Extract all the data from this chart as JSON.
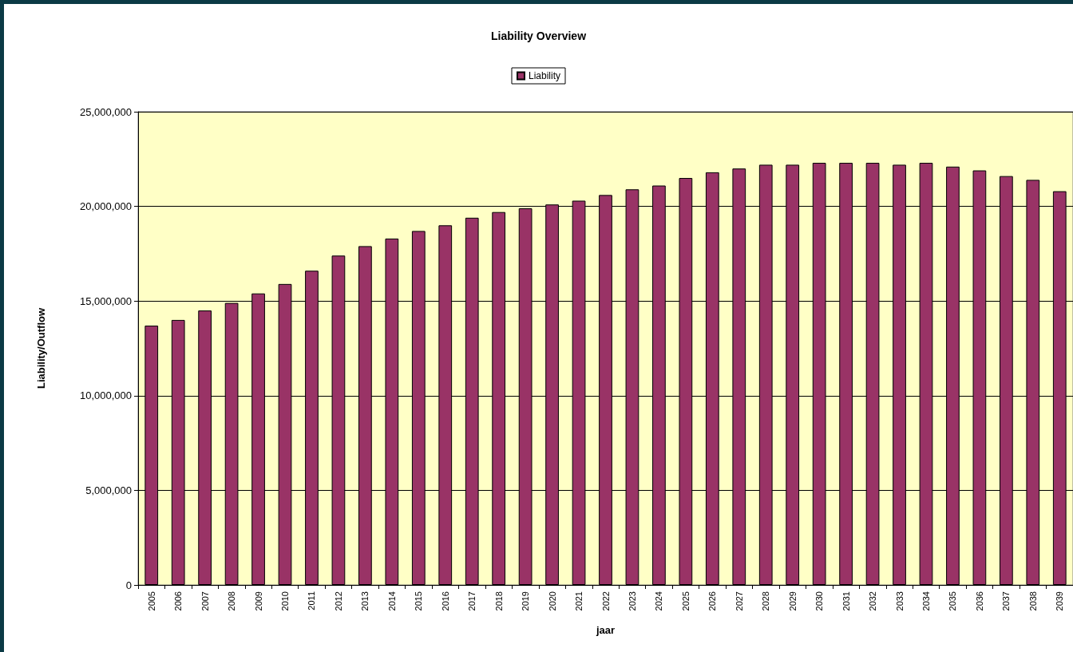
{
  "chart_data": {
    "type": "bar",
    "title": "Liability Overview",
    "xlabel": "jaar",
    "ylabel": "Liability/Outflow",
    "categories": [
      "2005",
      "2006",
      "2007",
      "2008",
      "2009",
      "2010",
      "2011",
      "2012",
      "2013",
      "2014",
      "2015",
      "2016",
      "2017",
      "2018",
      "2019",
      "2020",
      "2021",
      "2022",
      "2023",
      "2024",
      "2025",
      "2026",
      "2027",
      "2028",
      "2029",
      "2030",
      "2031",
      "2032",
      "2033",
      "2034",
      "2035",
      "2036",
      "2037",
      "2038",
      "2039"
    ],
    "series": [
      {
        "name": "Liability",
        "color": "#993366",
        "values": [
          13700000,
          14000000,
          14500000,
          14900000,
          15400000,
          15900000,
          16600000,
          17400000,
          17900000,
          18300000,
          18700000,
          19000000,
          19400000,
          19700000,
          19900000,
          20100000,
          20300000,
          20600000,
          20900000,
          21100000,
          21500000,
          21800000,
          22000000,
          22200000,
          22200000,
          22300000,
          22300000,
          22300000,
          22200000,
          22300000,
          22100000,
          21900000,
          21600000,
          21400000,
          20800000
        ]
      }
    ],
    "ylim": [
      0,
      25000000
    ],
    "yticks": [
      0,
      {
        "value": 5000000,
        "label": "5,000,000"
      },
      {
        "value": 10000000,
        "label": "10,000,000"
      },
      {
        "value": 15000000,
        "label": "15,000,000"
      },
      {
        "value": 20000000,
        "label": "20,000,000"
      },
      {
        "value": 25000000,
        "label": "25,000,000"
      }
    ],
    "grid": "y",
    "legend": "top"
  }
}
